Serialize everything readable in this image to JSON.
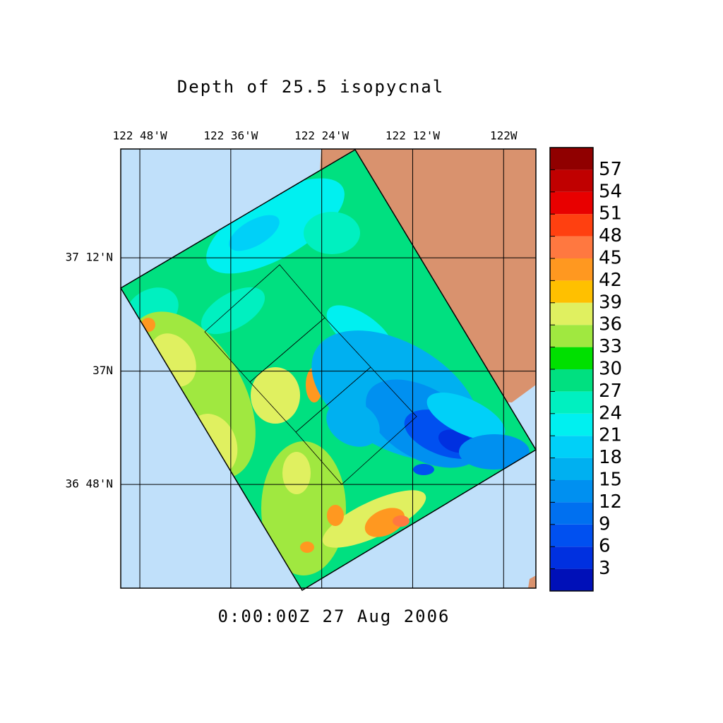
{
  "title": "Depth of 25.5 isopycnal",
  "timestamp": "0:00:00Z  27 Aug 2006",
  "map": {
    "xlim": [
      -122.842,
      -121.929
    ],
    "ylim": [
      36.617,
      37.392
    ],
    "xticks": [
      {
        "value": -122.8,
        "label": "122 48'W"
      },
      {
        "value": -122.6,
        "label": "122 36'W"
      },
      {
        "value": -122.4,
        "label": "122 24'W"
      },
      {
        "value": -122.2,
        "label": "122 12'W"
      },
      {
        "value": -122.0,
        "label": "122W"
      }
    ],
    "yticks": [
      {
        "value": 37.2,
        "label": "37 12'N"
      },
      {
        "value": 37.0,
        "label": "37N"
      },
      {
        "value": 36.8,
        "label": "36 48'N"
      }
    ],
    "grid": true,
    "ocean_color": "#c0e0fa",
    "land_color": "#d9926e"
  },
  "colorbar": {
    "lim": [
      0,
      60
    ],
    "ticks": [
      3,
      6,
      9,
      12,
      15,
      18,
      21,
      24,
      27,
      30,
      33,
      36,
      39,
      42,
      45,
      48,
      51,
      54,
      57
    ],
    "colors": [
      "#0010b8",
      "#0030e0",
      "#0050f0",
      "#0070f0",
      "#0090f0",
      "#00b0f0",
      "#00d0f8",
      "#00f0f0",
      "#00f0c0",
      "#00e080",
      "#00e000",
      "#a0e840",
      "#e0f060",
      "#ffc000",
      "#ff9820",
      "#ff7840",
      "#ff4010",
      "#e80000",
      "#c00000",
      "#900000"
    ]
  }
}
